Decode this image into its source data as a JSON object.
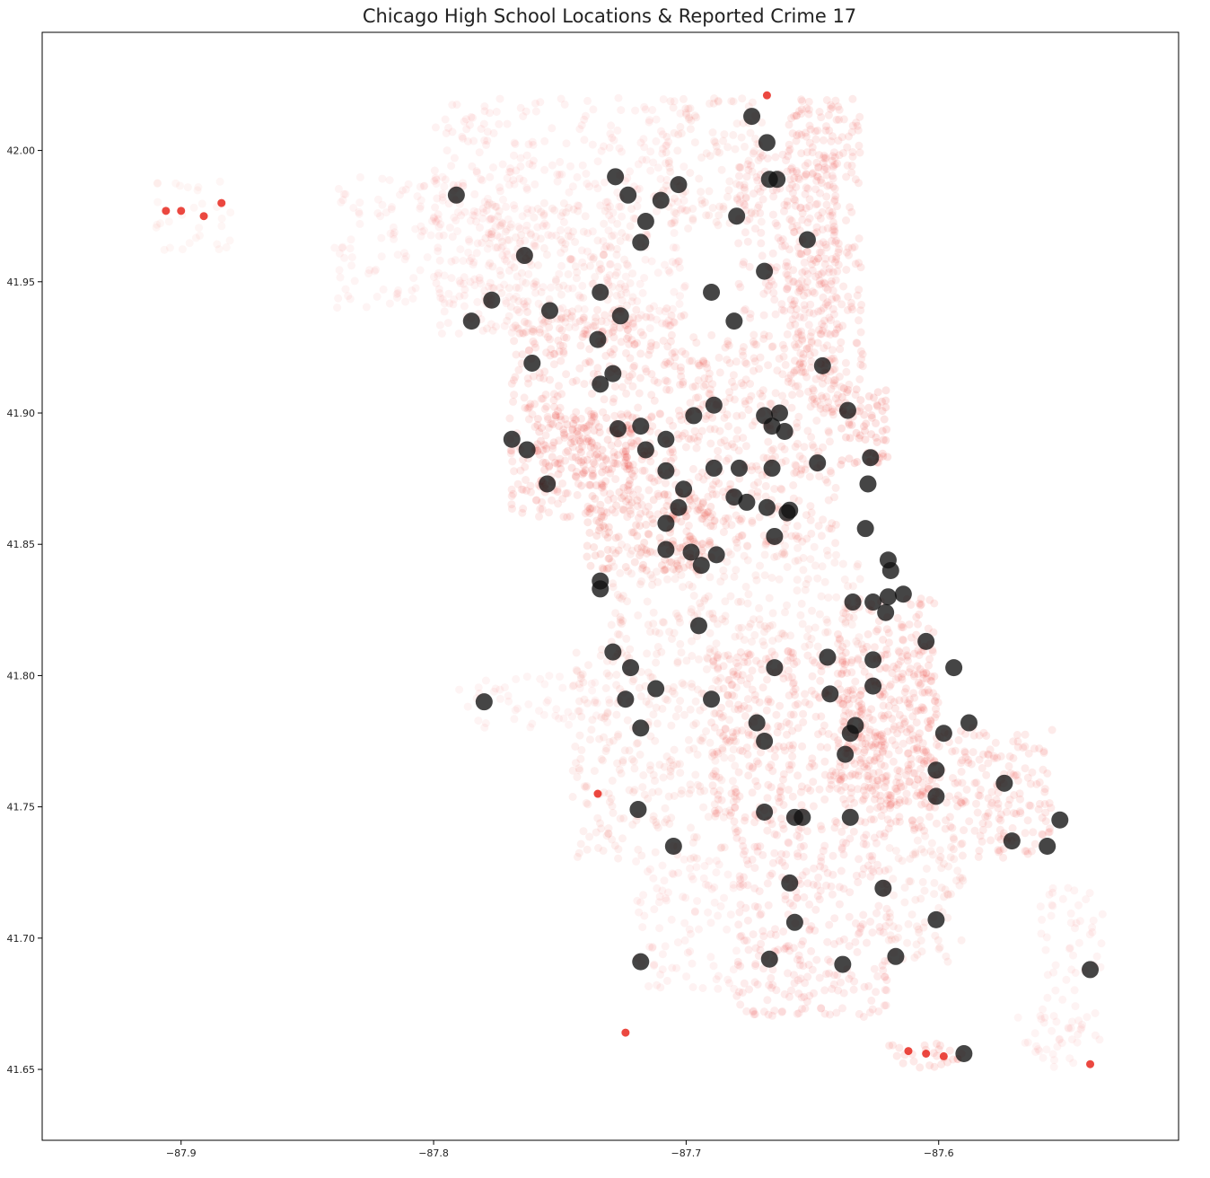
{
  "chart_data": {
    "type": "scatter",
    "title": "Chicago High School Locations & Reported Crime 17",
    "xlabel": "",
    "ylabel": "",
    "xlim": [
      -87.955,
      -87.505
    ],
    "ylim": [
      41.623,
      42.045
    ],
    "xticks": [
      -87.9,
      -87.8,
      -87.7,
      -87.6
    ],
    "yticks": [
      41.65,
      41.7,
      41.75,
      41.8,
      41.85,
      41.9,
      41.95,
      42.0
    ],
    "xtick_labels": [
      "−87.9",
      "−87.8",
      "−87.7",
      "−87.6"
    ],
    "ytick_labels": [
      "41.65",
      "41.70",
      "41.75",
      "41.80",
      "41.85",
      "41.90",
      "41.95",
      "42.00"
    ],
    "grid": false,
    "crime_color": "#e8281e",
    "school_color": "#111111",
    "crime_density_regions": [
      {
        "x": [
          -87.77,
          -87.7
        ],
        "y": [
          41.86,
          41.94
        ],
        "density": 0.55
      },
      {
        "x": [
          -87.76,
          -87.72
        ],
        "y": [
          41.87,
          41.9
        ],
        "density": 0.8
      },
      {
        "x": [
          -87.74,
          -87.69
        ],
        "y": [
          41.84,
          41.87
        ],
        "density": 0.75
      },
      {
        "x": [
          -87.7,
          -87.64
        ],
        "y": [
          41.85,
          41.93
        ],
        "density": 0.5
      },
      {
        "x": [
          -87.64,
          -87.62
        ],
        "y": [
          41.88,
          41.91
        ],
        "density": 0.85
      },
      {
        "x": [
          -87.68,
          -87.64
        ],
        "y": [
          41.93,
          42.0
        ],
        "density": 0.45
      },
      {
        "x": [
          -87.66,
          -87.63
        ],
        "y": [
          41.9,
          42.02
        ],
        "density": 0.55
      },
      {
        "x": [
          -87.71,
          -87.67
        ],
        "y": [
          41.97,
          42.02
        ],
        "density": 0.3
      },
      {
        "x": [
          -87.8,
          -87.7
        ],
        "y": [
          41.93,
          42.02
        ],
        "density": 0.18
      },
      {
        "x": [
          -87.84,
          -87.76
        ],
        "y": [
          41.94,
          41.99
        ],
        "density": 0.12
      },
      {
        "x": [
          -87.78,
          -87.72
        ],
        "y": [
          41.93,
          41.98
        ],
        "density": 0.25
      },
      {
        "x": [
          -87.73,
          -87.63
        ],
        "y": [
          41.81,
          41.85
        ],
        "density": 0.3
      },
      {
        "x": [
          -87.69,
          -87.6
        ],
        "y": [
          41.74,
          41.81
        ],
        "density": 0.55
      },
      {
        "x": [
          -87.64,
          -87.6
        ],
        "y": [
          41.75,
          41.83
        ],
        "density": 0.6
      },
      {
        "x": [
          -87.6,
          -87.555
        ],
        "y": [
          41.73,
          41.78
        ],
        "density": 0.55
      },
      {
        "x": [
          -87.745,
          -87.68
        ],
        "y": [
          41.73,
          41.81
        ],
        "density": 0.3
      },
      {
        "x": [
          -87.79,
          -87.73
        ],
        "y": [
          41.78,
          41.8
        ],
        "density": 0.12
      },
      {
        "x": [
          -87.68,
          -87.62
        ],
        "y": [
          41.67,
          41.74
        ],
        "density": 0.45
      },
      {
        "x": [
          -87.72,
          -87.68
        ],
        "y": [
          41.68,
          41.73
        ],
        "density": 0.18
      },
      {
        "x": [
          -87.62,
          -87.59
        ],
        "y": [
          41.69,
          41.74
        ],
        "density": 0.3
      },
      {
        "x": [
          -87.56,
          -87.535
        ],
        "y": [
          41.66,
          41.72
        ],
        "density": 0.15
      },
      {
        "x": [
          -87.57,
          -87.545
        ],
        "y": [
          41.65,
          41.67
        ],
        "density": 0.12
      },
      {
        "x": [
          -87.62,
          -87.59
        ],
        "y": [
          41.65,
          41.66
        ],
        "density": 0.6
      },
      {
        "x": [
          -87.91,
          -87.88
        ],
        "y": [
          41.96,
          41.99
        ],
        "density": 0.05
      }
    ],
    "crime_hotspots": [
      {
        "x": -87.906,
        "y": 41.977
      },
      {
        "x": -87.9,
        "y": 41.977
      },
      {
        "x": -87.891,
        "y": 41.975
      },
      {
        "x": -87.884,
        "y": 41.98
      },
      {
        "x": -87.598,
        "y": 41.655
      },
      {
        "x": -87.605,
        "y": 41.656
      },
      {
        "x": -87.612,
        "y": 41.657
      },
      {
        "x": -87.54,
        "y": 41.652
      },
      {
        "x": -87.735,
        "y": 41.755
      },
      {
        "x": -87.724,
        "y": 41.664
      },
      {
        "x": -87.668,
        "y": 42.021
      }
    ],
    "schools": [
      {
        "x": -87.674,
        "y": 42.013
      },
      {
        "x": -87.668,
        "y": 42.003
      },
      {
        "x": -87.667,
        "y": 41.989
      },
      {
        "x": -87.664,
        "y": 41.989
      },
      {
        "x": -87.791,
        "y": 41.983
      },
      {
        "x": -87.728,
        "y": 41.99
      },
      {
        "x": -87.723,
        "y": 41.983
      },
      {
        "x": -87.71,
        "y": 41.981
      },
      {
        "x": -87.703,
        "y": 41.987
      },
      {
        "x": -87.68,
        "y": 41.975
      },
      {
        "x": -87.716,
        "y": 41.973
      },
      {
        "x": -87.718,
        "y": 41.965
      },
      {
        "x": -87.652,
        "y": 41.966
      },
      {
        "x": -87.764,
        "y": 41.96
      },
      {
        "x": -87.669,
        "y": 41.954
      },
      {
        "x": -87.734,
        "y": 41.946
      },
      {
        "x": -87.69,
        "y": 41.946
      },
      {
        "x": -87.777,
        "y": 41.943
      },
      {
        "x": -87.754,
        "y": 41.939
      },
      {
        "x": -87.726,
        "y": 41.937
      },
      {
        "x": -87.785,
        "y": 41.935
      },
      {
        "x": -87.681,
        "y": 41.935
      },
      {
        "x": -87.735,
        "y": 41.928
      },
      {
        "x": -87.761,
        "y": 41.919
      },
      {
        "x": -87.646,
        "y": 41.918
      },
      {
        "x": -87.729,
        "y": 41.915
      },
      {
        "x": -87.734,
        "y": 41.911
      },
      {
        "x": -87.636,
        "y": 41.901
      },
      {
        "x": -87.689,
        "y": 41.903
      },
      {
        "x": -87.697,
        "y": 41.899
      },
      {
        "x": -87.669,
        "y": 41.899
      },
      {
        "x": -87.663,
        "y": 41.9
      },
      {
        "x": -87.666,
        "y": 41.895
      },
      {
        "x": -87.661,
        "y": 41.893
      },
      {
        "x": -87.727,
        "y": 41.894
      },
      {
        "x": -87.718,
        "y": 41.895
      },
      {
        "x": -87.769,
        "y": 41.89
      },
      {
        "x": -87.763,
        "y": 41.886
      },
      {
        "x": -87.708,
        "y": 41.89
      },
      {
        "x": -87.716,
        "y": 41.886
      },
      {
        "x": -87.627,
        "y": 41.883
      },
      {
        "x": -87.648,
        "y": 41.881
      },
      {
        "x": -87.689,
        "y": 41.879
      },
      {
        "x": -87.679,
        "y": 41.879
      },
      {
        "x": -87.666,
        "y": 41.879
      },
      {
        "x": -87.708,
        "y": 41.878
      },
      {
        "x": -87.755,
        "y": 41.873
      },
      {
        "x": -87.628,
        "y": 41.873
      },
      {
        "x": -87.701,
        "y": 41.871
      },
      {
        "x": -87.681,
        "y": 41.868
      },
      {
        "x": -87.676,
        "y": 41.866
      },
      {
        "x": -87.668,
        "y": 41.864
      },
      {
        "x": -87.659,
        "y": 41.863
      },
      {
        "x": -87.703,
        "y": 41.864
      },
      {
        "x": -87.66,
        "y": 41.862
      },
      {
        "x": -87.708,
        "y": 41.858
      },
      {
        "x": -87.629,
        "y": 41.856
      },
      {
        "x": -87.665,
        "y": 41.853
      },
      {
        "x": -87.708,
        "y": 41.848
      },
      {
        "x": -87.698,
        "y": 41.847
      },
      {
        "x": -87.688,
        "y": 41.846
      },
      {
        "x": -87.694,
        "y": 41.842
      },
      {
        "x": -87.62,
        "y": 41.844
      },
      {
        "x": -87.619,
        "y": 41.84
      },
      {
        "x": -87.734,
        "y": 41.836
      },
      {
        "x": -87.734,
        "y": 41.833
      },
      {
        "x": -87.634,
        "y": 41.828
      },
      {
        "x": -87.626,
        "y": 41.828
      },
      {
        "x": -87.62,
        "y": 41.83
      },
      {
        "x": -87.614,
        "y": 41.831
      },
      {
        "x": -87.621,
        "y": 41.824
      },
      {
        "x": -87.695,
        "y": 41.819
      },
      {
        "x": -87.605,
        "y": 41.813
      },
      {
        "x": -87.729,
        "y": 41.809
      },
      {
        "x": -87.644,
        "y": 41.807
      },
      {
        "x": -87.626,
        "y": 41.806
      },
      {
        "x": -87.722,
        "y": 41.803
      },
      {
        "x": -87.665,
        "y": 41.803
      },
      {
        "x": -87.594,
        "y": 41.803
      },
      {
        "x": -87.626,
        "y": 41.796
      },
      {
        "x": -87.712,
        "y": 41.795
      },
      {
        "x": -87.643,
        "y": 41.793
      },
      {
        "x": -87.724,
        "y": 41.791
      },
      {
        "x": -87.69,
        "y": 41.791
      },
      {
        "x": -87.78,
        "y": 41.79
      },
      {
        "x": -87.672,
        "y": 41.782
      },
      {
        "x": -87.588,
        "y": 41.782
      },
      {
        "x": -87.633,
        "y": 41.781
      },
      {
        "x": -87.635,
        "y": 41.778
      },
      {
        "x": -87.718,
        "y": 41.78
      },
      {
        "x": -87.598,
        "y": 41.778
      },
      {
        "x": -87.669,
        "y": 41.775
      },
      {
        "x": -87.637,
        "y": 41.77
      },
      {
        "x": -87.601,
        "y": 41.764
      },
      {
        "x": -87.574,
        "y": 41.759
      },
      {
        "x": -87.601,
        "y": 41.754
      },
      {
        "x": -87.719,
        "y": 41.749
      },
      {
        "x": -87.669,
        "y": 41.748
      },
      {
        "x": -87.657,
        "y": 41.746
      },
      {
        "x": -87.654,
        "y": 41.746
      },
      {
        "x": -87.635,
        "y": 41.746
      },
      {
        "x": -87.552,
        "y": 41.745
      },
      {
        "x": -87.571,
        "y": 41.737
      },
      {
        "x": -87.557,
        "y": 41.735
      },
      {
        "x": -87.705,
        "y": 41.735
      },
      {
        "x": -87.659,
        "y": 41.721
      },
      {
        "x": -87.622,
        "y": 41.719
      },
      {
        "x": -87.657,
        "y": 41.706
      },
      {
        "x": -87.601,
        "y": 41.707
      },
      {
        "x": -87.718,
        "y": 41.691
      },
      {
        "x": -87.667,
        "y": 41.692
      },
      {
        "x": -87.638,
        "y": 41.69
      },
      {
        "x": -87.617,
        "y": 41.693
      },
      {
        "x": -87.54,
        "y": 41.688
      },
      {
        "x": -87.59,
        "y": 41.656
      }
    ]
  }
}
